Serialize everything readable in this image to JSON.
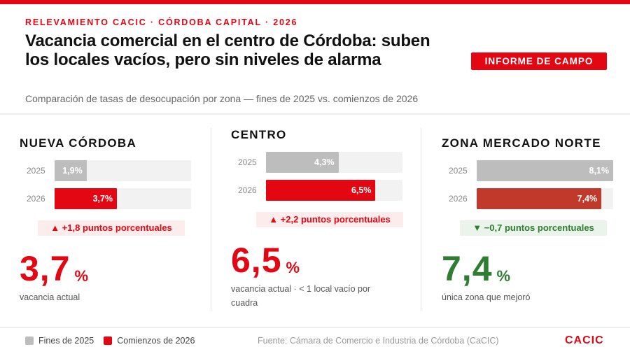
{
  "header": {
    "kicker": "RELEVAMIENTO CACIC · CÓRDOBA CAPITAL · 2026",
    "title": "Vacancia comercial en el centro de Córdoba: suben los locales vacíos, pero sin niveles de alarma",
    "subtitle": "Comparación de tasas de desocupación por zona — fines de 2025 vs. comienzos de 2026",
    "badge": "INFORME DE CAMPO"
  },
  "colors": {
    "accent": "#e30613",
    "gray": "#bdbdbd",
    "improved_bar": "#c0392b",
    "green": "#2e7d32"
  },
  "scale_max": 8.1,
  "zones": [
    {
      "name": "NUEVA CÓRDOBA",
      "y2025_label": "2025",
      "y2026_label": "2026",
      "v2025": 1.9,
      "v2025_text": "1,9%",
      "v2026": 3.7,
      "v2026_text": "3,7%",
      "delta": "▲ +1,8 puntos porcentuales",
      "trend": "up",
      "big": "3,7",
      "pct": "%",
      "note": "vacancia actual"
    },
    {
      "name": "CENTRO",
      "y2025_label": "2025",
      "y2026_label": "2026",
      "v2025": 4.3,
      "v2025_text": "4,3%",
      "v2026": 6.5,
      "v2026_text": "6,5%",
      "delta": "▲ +2,2 puntos porcentuales",
      "trend": "up",
      "big": "6,5",
      "pct": "%",
      "note": "vacancia actual · < 1 local vacío por cuadra"
    },
    {
      "name": "ZONA MERCADO NORTE",
      "y2025_label": "2025",
      "y2026_label": "2026",
      "v2025": 8.1,
      "v2025_text": "8,1%",
      "v2026": 7.4,
      "v2026_text": "7,4%",
      "delta": "▼ −0,7 puntos porcentuales",
      "trend": "down",
      "big": "7,4",
      "pct": "%",
      "note": "única zona que mejoró"
    }
  ],
  "footer": {
    "legend_2025": "Fines de 2025",
    "legend_2026": "Comienzos de 2026",
    "source": "Fuente: Cámara de Comercio e Industria de Córdoba (CaCIC)",
    "brand": "CACIC"
  }
}
